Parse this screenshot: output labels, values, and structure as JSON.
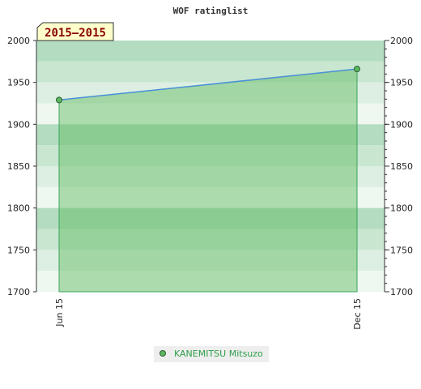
{
  "chart_data": {
    "type": "area",
    "title": "WOF ratinglist",
    "period_label": "2015–2015",
    "x": [
      "Jun 15",
      "Dec 15"
    ],
    "series": [
      {
        "name": "KANEMITSU Mitsuzo",
        "values": [
          1929,
          1966
        ]
      }
    ],
    "ylim": [
      1700,
      2000
    ],
    "yticks": [
      1700,
      1750,
      1800,
      1850,
      1900,
      1950,
      2000
    ],
    "axes": "left and right",
    "grid": true,
    "legend_position": "bottom-center",
    "colors": {
      "line": "#4a90d9",
      "area": "#5cb85c",
      "marker": "#3a8a4a",
      "band_dark": "#b3dcc0",
      "band_light": "#eaf5ed",
      "badge_bg": "#ffffcc",
      "badge_text": "#8b0000",
      "legend_text": "#2e9e4a"
    }
  }
}
